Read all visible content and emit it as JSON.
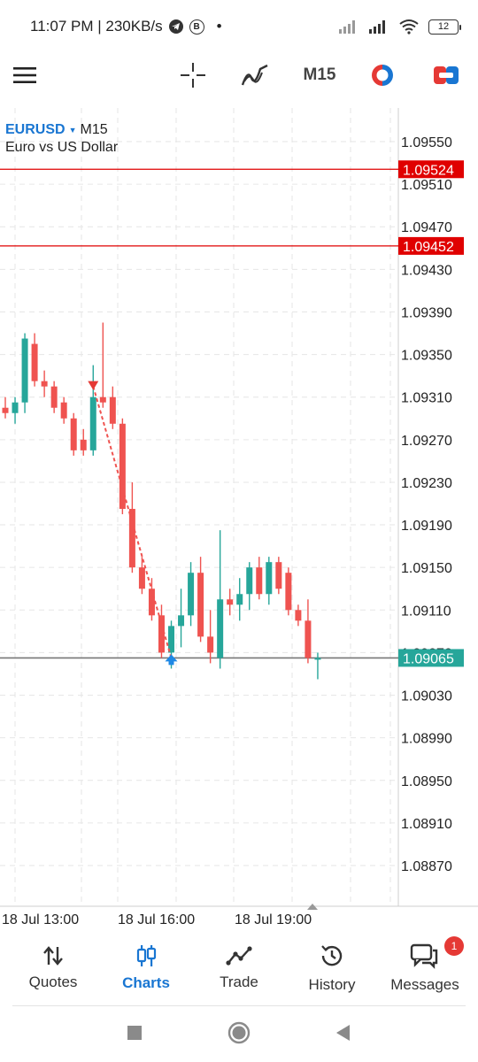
{
  "status_bar": {
    "time_speed": "11:07 PM | 230KB/s",
    "badge_letter": "B",
    "dot": "•",
    "battery": "12"
  },
  "toolbar": {
    "timeframe": "M15",
    "accent_red": "#e53935",
    "accent_blue": "#1976d2"
  },
  "chart": {
    "symbol": "EURUSD",
    "timeframe": "M15",
    "description": "Euro vs US Dollar",
    "price_levels": [
      "1.09550",
      "1.09510",
      "1.09470",
      "1.09430",
      "1.09390",
      "1.09350",
      "1.09310",
      "1.09270",
      "1.09230",
      "1.09190",
      "1.09150",
      "1.09110",
      "1.09070",
      "1.09030",
      "1.08990",
      "1.08950",
      "1.08910",
      "1.08870"
    ],
    "lines": [
      {
        "label": "1.09524",
        "value": 1.09524,
        "color": "#e00000"
      },
      {
        "label": "1.09452",
        "value": 1.09452,
        "color": "#e00000"
      },
      {
        "label": "1.09065",
        "value": 1.09065,
        "color": "#26a69a"
      }
    ],
    "time_labels": [
      "18 Jul 13:00",
      "18 Jul 16:00",
      "18 Jul 19:00"
    ]
  },
  "chart_data": {
    "type": "candlestick",
    "symbol": "EURUSD",
    "timeframe": "M15",
    "ylim": [
      1.0883,
      1.0959
    ],
    "up_color": "#26a69a",
    "down_color": "#ef5350",
    "candles": [
      {
        "o": 1.093,
        "h": 1.0931,
        "l": 1.0929,
        "c": 1.09295
      },
      {
        "o": 1.09295,
        "h": 1.0931,
        "l": 1.09285,
        "c": 1.09305
      },
      {
        "o": 1.09305,
        "h": 1.0937,
        "l": 1.09295,
        "c": 1.09365
      },
      {
        "o": 1.0936,
        "h": 1.0937,
        "l": 1.0932,
        "c": 1.09325
      },
      {
        "o": 1.09325,
        "h": 1.09335,
        "l": 1.0931,
        "c": 1.0932
      },
      {
        "o": 1.0932,
        "h": 1.09325,
        "l": 1.09295,
        "c": 1.093
      },
      {
        "o": 1.09305,
        "h": 1.0931,
        "l": 1.09285,
        "c": 1.0929
      },
      {
        "o": 1.0929,
        "h": 1.09295,
        "l": 1.09255,
        "c": 1.0926
      },
      {
        "o": 1.0927,
        "h": 1.0928,
        "l": 1.09255,
        "c": 1.0926
      },
      {
        "o": 1.0926,
        "h": 1.0934,
        "l": 1.09255,
        "c": 1.0931
      },
      {
        "o": 1.0931,
        "h": 1.0938,
        "l": 1.093,
        "c": 1.09305
      },
      {
        "o": 1.0931,
        "h": 1.0932,
        "l": 1.0928,
        "c": 1.09285
      },
      {
        "o": 1.09285,
        "h": 1.0929,
        "l": 1.092,
        "c": 1.09205
      },
      {
        "o": 1.09205,
        "h": 1.0923,
        "l": 1.09145,
        "c": 1.0915
      },
      {
        "o": 1.0915,
        "h": 1.0916,
        "l": 1.09125,
        "c": 1.0913
      },
      {
        "o": 1.0913,
        "h": 1.0914,
        "l": 1.091,
        "c": 1.09105
      },
      {
        "o": 1.09105,
        "h": 1.09115,
        "l": 1.09065,
        "c": 1.0907
      },
      {
        "o": 1.0907,
        "h": 1.091,
        "l": 1.09055,
        "c": 1.09095
      },
      {
        "o": 1.09095,
        "h": 1.0913,
        "l": 1.09075,
        "c": 1.09105
      },
      {
        "o": 1.09105,
        "h": 1.09155,
        "l": 1.09095,
        "c": 1.09145
      },
      {
        "o": 1.09145,
        "h": 1.0916,
        "l": 1.0908,
        "c": 1.09085
      },
      {
        "o": 1.09085,
        "h": 1.0911,
        "l": 1.0906,
        "c": 1.0907
      },
      {
        "o": 1.09065,
        "h": 1.09185,
        "l": 1.09055,
        "c": 1.0912
      },
      {
        "o": 1.0912,
        "h": 1.0913,
        "l": 1.09105,
        "c": 1.09115
      },
      {
        "o": 1.09115,
        "h": 1.0914,
        "l": 1.091,
        "c": 1.09125
      },
      {
        "o": 1.09125,
        "h": 1.09155,
        "l": 1.0911,
        "c": 1.0915
      },
      {
        "o": 1.0915,
        "h": 1.0916,
        "l": 1.0912,
        "c": 1.09125
      },
      {
        "o": 1.09125,
        "h": 1.0916,
        "l": 1.09115,
        "c": 1.09155
      },
      {
        "o": 1.09155,
        "h": 1.0916,
        "l": 1.09125,
        "c": 1.0913
      },
      {
        "o": 1.09145,
        "h": 1.0915,
        "l": 1.09105,
        "c": 1.0911
      },
      {
        "o": 1.0911,
        "h": 1.09115,
        "l": 1.09095,
        "c": 1.091
      },
      {
        "o": 1.091,
        "h": 1.0912,
        "l": 1.0906,
        "c": 1.09065
      },
      {
        "o": 1.09065,
        "h": 1.0907,
        "l": 1.09045,
        "c": 1.09065
      }
    ],
    "trade_markers": [
      {
        "type": "sell",
        "index": 9,
        "price": 1.0932
      },
      {
        "type": "buy",
        "index": 17,
        "price": 1.09065
      }
    ]
  },
  "bottom_nav": {
    "items": [
      {
        "label": "Quotes",
        "icon": "quotes-arrows-icon"
      },
      {
        "label": "Charts",
        "icon": "charts-candles-icon",
        "active": true
      },
      {
        "label": "Trade",
        "icon": "trade-line-icon"
      },
      {
        "label": "History",
        "icon": "history-clock-icon"
      },
      {
        "label": "Messages",
        "icon": "messages-bubble-icon",
        "badge": "1"
      }
    ]
  }
}
